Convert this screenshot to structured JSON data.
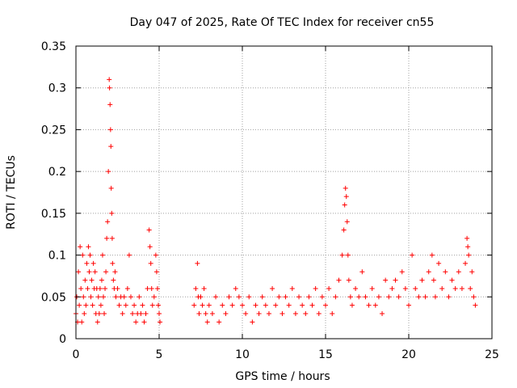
{
  "chart_data": {
    "type": "scatter",
    "title": "Day 047 of 2025, Rate Of TEC Index for receiver cn55",
    "xlabel": "GPS time / hours",
    "ylabel": "ROTI / TECUs",
    "xlim": [
      0,
      25
    ],
    "ylim": [
      0,
      0.35
    ],
    "xticks": [
      0,
      5,
      10,
      15,
      20,
      25
    ],
    "xtick_labels": [
      "0",
      "5",
      "10",
      "15",
      "20",
      "25"
    ],
    "yticks": [
      0,
      0.05,
      0.1,
      0.15,
      0.2,
      0.25,
      0.3,
      0.35
    ],
    "ytick_labels": [
      "0",
      "0.05",
      "0.1",
      "0.15",
      "0.2",
      "0.25",
      "0.3",
      "0.35"
    ],
    "grid": true,
    "marker": "+",
    "color": "#ff0000",
    "data_gap_hours": [
      5.1,
      7.1
    ],
    "series": [
      {
        "name": "ROTI",
        "points": [
          [
            0.0,
            0.03
          ],
          [
            0.05,
            0.05
          ],
          [
            0.1,
            0.02
          ],
          [
            0.15,
            0.08
          ],
          [
            0.2,
            0.04
          ],
          [
            0.25,
            0.11
          ],
          [
            0.3,
            0.06
          ],
          [
            0.35,
            0.02
          ],
          [
            0.4,
            0.1
          ],
          [
            0.45,
            0.05
          ],
          [
            0.5,
            0.03
          ],
          [
            0.55,
            0.07
          ],
          [
            0.6,
            0.04
          ],
          [
            0.65,
            0.09
          ],
          [
            0.7,
            0.06
          ],
          [
            0.75,
            0.11
          ],
          [
            0.8,
            0.08
          ],
          [
            0.85,
            0.1
          ],
          [
            0.9,
            0.05
          ],
          [
            0.95,
            0.07
          ],
          [
            1.0,
            0.04
          ],
          [
            1.05,
            0.09
          ],
          [
            1.1,
            0.06
          ],
          [
            1.15,
            0.08
          ],
          [
            1.2,
            0.03
          ],
          [
            1.25,
            0.06
          ],
          [
            1.3,
            0.02
          ],
          [
            1.35,
            0.05
          ],
          [
            1.4,
            0.03
          ],
          [
            1.45,
            0.06
          ],
          [
            1.5,
            0.04
          ],
          [
            1.55,
            0.07
          ],
          [
            1.6,
            0.1
          ],
          [
            1.65,
            0.05
          ],
          [
            1.7,
            0.03
          ],
          [
            1.75,
            0.06
          ],
          [
            1.8,
            0.08
          ],
          [
            1.85,
            0.12
          ],
          [
            1.9,
            0.14
          ],
          [
            1.95,
            0.2
          ],
          [
            2.0,
            0.31
          ],
          [
            2.02,
            0.3
          ],
          [
            2.05,
            0.28
          ],
          [
            2.08,
            0.25
          ],
          [
            2.1,
            0.23
          ],
          [
            2.12,
            0.18
          ],
          [
            2.15,
            0.15
          ],
          [
            2.18,
            0.12
          ],
          [
            2.2,
            0.09
          ],
          [
            2.25,
            0.07
          ],
          [
            2.3,
            0.06
          ],
          [
            2.35,
            0.08
          ],
          [
            2.4,
            0.05
          ],
          [
            2.5,
            0.06
          ],
          [
            2.6,
            0.04
          ],
          [
            2.7,
            0.05
          ],
          [
            2.8,
            0.03
          ],
          [
            2.9,
            0.05
          ],
          [
            3.0,
            0.04
          ],
          [
            3.1,
            0.06
          ],
          [
            3.2,
            0.1
          ],
          [
            3.3,
            0.05
          ],
          [
            3.4,
            0.03
          ],
          [
            3.5,
            0.04
          ],
          [
            3.6,
            0.02
          ],
          [
            3.7,
            0.03
          ],
          [
            3.8,
            0.05
          ],
          [
            3.9,
            0.03
          ],
          [
            4.0,
            0.04
          ],
          [
            4.1,
            0.02
          ],
          [
            4.2,
            0.03
          ],
          [
            4.3,
            0.06
          ],
          [
            4.4,
            0.13
          ],
          [
            4.45,
            0.11
          ],
          [
            4.5,
            0.09
          ],
          [
            4.55,
            0.06
          ],
          [
            4.6,
            0.04
          ],
          [
            4.7,
            0.05
          ],
          [
            4.8,
            0.1
          ],
          [
            4.85,
            0.08
          ],
          [
            4.9,
            0.06
          ],
          [
            4.95,
            0.04
          ],
          [
            5.0,
            0.03
          ],
          [
            5.05,
            0.02
          ],
          [
            7.1,
            0.04
          ],
          [
            7.2,
            0.06
          ],
          [
            7.3,
            0.09
          ],
          [
            7.35,
            0.05
          ],
          [
            7.4,
            0.03
          ],
          [
            7.5,
            0.05
          ],
          [
            7.6,
            0.04
          ],
          [
            7.7,
            0.06
          ],
          [
            7.8,
            0.03
          ],
          [
            7.9,
            0.02
          ],
          [
            8.0,
            0.04
          ],
          [
            8.2,
            0.03
          ],
          [
            8.4,
            0.05
          ],
          [
            8.6,
            0.02
          ],
          [
            8.8,
            0.04
          ],
          [
            9.0,
            0.03
          ],
          [
            9.2,
            0.05
          ],
          [
            9.4,
            0.04
          ],
          [
            9.6,
            0.06
          ],
          [
            9.8,
            0.05
          ],
          [
            10.0,
            0.04
          ],
          [
            10.2,
            0.03
          ],
          [
            10.4,
            0.05
          ],
          [
            10.6,
            0.02
          ],
          [
            10.8,
            0.04
          ],
          [
            11.0,
            0.03
          ],
          [
            11.2,
            0.05
          ],
          [
            11.4,
            0.04
          ],
          [
            11.6,
            0.03
          ],
          [
            11.8,
            0.06
          ],
          [
            12.0,
            0.04
          ],
          [
            12.2,
            0.05
          ],
          [
            12.4,
            0.03
          ],
          [
            12.6,
            0.05
          ],
          [
            12.8,
            0.04
          ],
          [
            13.0,
            0.06
          ],
          [
            13.2,
            0.03
          ],
          [
            13.4,
            0.05
          ],
          [
            13.6,
            0.04
          ],
          [
            13.8,
            0.03
          ],
          [
            14.0,
            0.05
          ],
          [
            14.2,
            0.04
          ],
          [
            14.4,
            0.06
          ],
          [
            14.6,
            0.03
          ],
          [
            14.8,
            0.05
          ],
          [
            15.0,
            0.04
          ],
          [
            15.2,
            0.06
          ],
          [
            15.4,
            0.03
          ],
          [
            15.6,
            0.05
          ],
          [
            15.8,
            0.07
          ],
          [
            16.0,
            0.1
          ],
          [
            16.1,
            0.13
          ],
          [
            16.15,
            0.16
          ],
          [
            16.2,
            0.18
          ],
          [
            16.25,
            0.17
          ],
          [
            16.3,
            0.14
          ],
          [
            16.35,
            0.1
          ],
          [
            16.4,
            0.07
          ],
          [
            16.5,
            0.05
          ],
          [
            16.6,
            0.04
          ],
          [
            16.8,
            0.06
          ],
          [
            17.0,
            0.05
          ],
          [
            17.2,
            0.08
          ],
          [
            17.4,
            0.05
          ],
          [
            17.6,
            0.04
          ],
          [
            17.8,
            0.06
          ],
          [
            18.0,
            0.04
          ],
          [
            18.2,
            0.05
          ],
          [
            18.4,
            0.03
          ],
          [
            18.6,
            0.07
          ],
          [
            18.8,
            0.05
          ],
          [
            19.0,
            0.06
          ],
          [
            19.2,
            0.07
          ],
          [
            19.4,
            0.05
          ],
          [
            19.6,
            0.08
          ],
          [
            19.8,
            0.06
          ],
          [
            20.0,
            0.04
          ],
          [
            20.2,
            0.1
          ],
          [
            20.4,
            0.06
          ],
          [
            20.6,
            0.05
          ],
          [
            20.8,
            0.07
          ],
          [
            21.0,
            0.05
          ],
          [
            21.2,
            0.08
          ],
          [
            21.4,
            0.1
          ],
          [
            21.5,
            0.07
          ],
          [
            21.6,
            0.05
          ],
          [
            21.8,
            0.09
          ],
          [
            22.0,
            0.06
          ],
          [
            22.2,
            0.08
          ],
          [
            22.4,
            0.05
          ],
          [
            22.6,
            0.07
          ],
          [
            22.8,
            0.06
          ],
          [
            23.0,
            0.08
          ],
          [
            23.2,
            0.06
          ],
          [
            23.4,
            0.09
          ],
          [
            23.5,
            0.12
          ],
          [
            23.55,
            0.11
          ],
          [
            23.6,
            0.1
          ],
          [
            23.7,
            0.06
          ],
          [
            23.8,
            0.08
          ],
          [
            23.9,
            0.05
          ],
          [
            24.0,
            0.04
          ]
        ]
      }
    ]
  }
}
